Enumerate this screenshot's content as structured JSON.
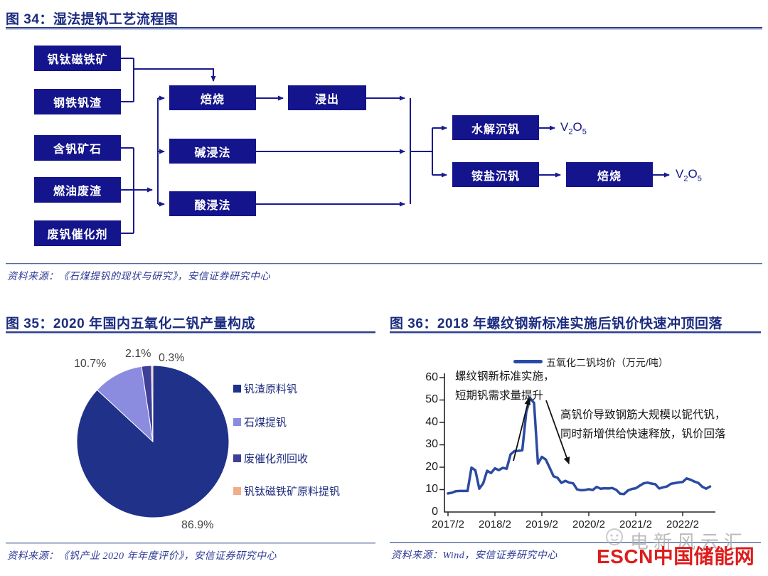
{
  "figures": {
    "fig34": {
      "title": "图 34：湿法提钒工艺流程图",
      "source": "资料来源：《石煤提钒的现状与研究》，安信证券研究中心"
    },
    "fig35": {
      "title": "图 35：2020 年国内五氧化二钒产量构成",
      "source": "资料来源：《钒产业 2020 年年度评价》，安信证券研究中心"
    },
    "fig36": {
      "title": "图 36：2018 年螺纹钢新标准实施后钒价快速冲顶回落",
      "source": "资料来源：Wind，安信证券研究中心"
    }
  },
  "watermark": {
    "gray_text": "电新风云汇",
    "red_text_en": "ESCN",
    "red_text_cn": "中国储能网",
    "red_color": "#de1c1c"
  },
  "chart_data": [
    {
      "figure": "图 34",
      "type": "diagram",
      "title": "湿法提钒工艺流程图",
      "box_color": "#14148c",
      "line_color": "#1a1a8c",
      "nodes": {
        "sources": [
          "钒钛磁铁矿",
          "钢铁钒渣",
          "含钒矿石",
          "燃油废渣",
          "废钒催化剂"
        ],
        "processes": [
          "焙烧",
          "浸出",
          "碱浸法",
          "酸浸法"
        ],
        "finishing": [
          "水解沉钒",
          "铵盐沉钒",
          "焙烧"
        ]
      },
      "product": {
        "formula": "V2O5",
        "el1": "V",
        "sub1": "2",
        "el2": "O",
        "sub2": "5"
      },
      "edges": [
        "钒钛磁铁矿→焙烧",
        "钢铁钒渣→焙烧",
        "含钒矿石→{焙烧,碱浸法,酸浸法}",
        "燃油废渣→{焙烧,碱浸法,酸浸法}",
        "废钒催化剂→{焙烧,碱浸法,酸浸法}",
        "焙烧→浸出",
        "浸出→{水解沉钒,铵盐沉钒}",
        "碱浸法→{水解沉钒,铵盐沉钒}",
        "酸浸法→{水解沉钒,铵盐沉钒}",
        "水解沉钒→V2O5",
        "铵盐沉钒→焙烧",
        "焙烧→V2O5"
      ]
    },
    {
      "figure": "图 35",
      "type": "pie",
      "title": "2020 年国内五氧化二钒产量构成",
      "labels": [
        "钒渣原料钒",
        "石煤提钒",
        "废催化剂回收",
        "钒钛磁铁矿原料提钒"
      ],
      "values": [
        86.9,
        10.7,
        2.1,
        0.3
      ],
      "pct_labels": [
        "86.9%",
        "10.7%",
        "2.1%",
        "0.3%"
      ],
      "colors": [
        "#1f3189",
        "#8b8ce0",
        "#3f3f9a",
        "#efae88"
      ],
      "legend_position": "right",
      "start_angle_deg": 0,
      "direction": "clockwise"
    },
    {
      "figure": "图 36",
      "type": "line",
      "title": "2018 年螺纹钢新标准实施后钒价快速冲顶回落",
      "legend": "五氧化二钒均价（万元/吨）",
      "line_color": "#2b4aa2",
      "x_start": "2017/2",
      "x_interval": "monthly",
      "x_ticks": [
        "2017/2",
        "2018/2",
        "2019/2",
        "2020/2",
        "2021/2",
        "2022/2"
      ],
      "y_ticks": [
        "60",
        "50",
        "40",
        "30",
        "20",
        "10",
        "0"
      ],
      "ylim": [
        0,
        60
      ],
      "values": [
        8.3,
        8.6,
        9.3,
        9.4,
        9.4,
        9.4,
        19.8,
        18.6,
        10.4,
        12.8,
        18.4,
        17.4,
        19.5,
        18.7,
        19.7,
        19.3,
        25.7,
        27.2,
        27.3,
        27.6,
        44.5,
        50.8,
        48.7,
        21.6,
        24.6,
        23.4,
        19.7,
        15.9,
        15.3,
        13.0,
        13.9,
        13.1,
        12.8,
        10.1,
        9.7,
        9.8,
        10.2,
        9.8,
        11.2,
        10.4,
        10.6,
        10.5,
        10.7,
        9.9,
        8.2,
        8.0,
        9.6,
        10.3,
        10.6,
        11.7,
        12.8,
        13.1,
        12.7,
        12.4,
        10.5,
        11.0,
        11.4,
        12.6,
        12.9,
        13.2,
        13.4,
        15.0,
        14.4,
        13.6,
        13.0,
        11.3,
        10.4,
        11.4
      ],
      "annotations": [
        {
          "text_line1": "螺纹钢新标准实施，",
          "text_line2": "短期钒需求量提升"
        },
        {
          "text_line1": "高钒价导致钢筋大规模以铌代钒，",
          "text_line2": "同时新增供给快速释放，钒价回落"
        }
      ]
    }
  ]
}
